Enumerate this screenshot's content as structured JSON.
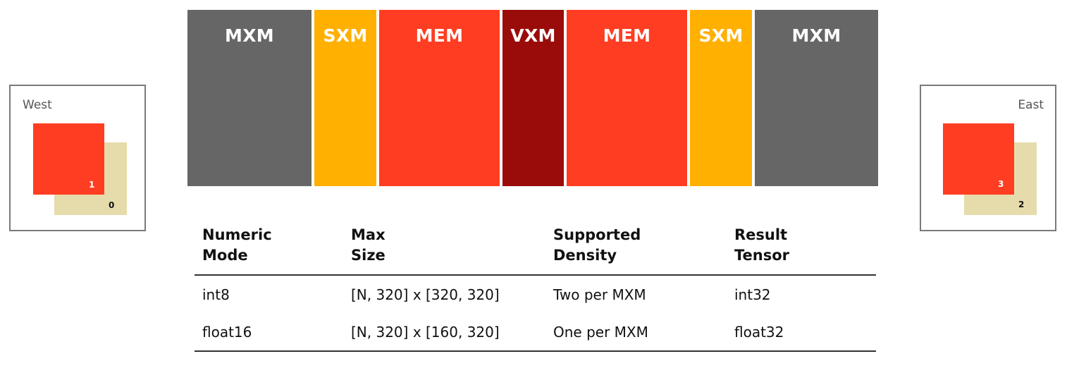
{
  "colors": {
    "mxm": "#666666",
    "sxm": "#ffb000",
    "mem": "#ff3d22",
    "vxm": "#990c0a",
    "tile_front": "#ff3d22",
    "tile_back": "#e6dcab"
  },
  "blocks": [
    {
      "label": "MXM",
      "kind": "mxm"
    },
    {
      "label": "SXM",
      "kind": "sxm"
    },
    {
      "label": "MEM",
      "kind": "mem"
    },
    {
      "label": "VXM",
      "kind": "vxm"
    },
    {
      "label": "MEM",
      "kind": "mem"
    },
    {
      "label": "SXM",
      "kind": "sxm"
    },
    {
      "label": "MXM",
      "kind": "mxm"
    }
  ],
  "west": {
    "label": "West",
    "front_number": "1",
    "back_number": "0"
  },
  "east": {
    "label": "East",
    "front_number": "3",
    "back_number": "2"
  },
  "table": {
    "headers": [
      [
        "Numeric",
        "Mode"
      ],
      [
        "Max",
        "Size"
      ],
      [
        "Supported",
        "Density"
      ],
      [
        "Result",
        "Tensor"
      ]
    ],
    "rows": [
      [
        "int8",
        "[N, 320] x [320, 320]",
        "Two per MXM",
        "int32"
      ],
      [
        "float16",
        "[N, 320] x [160, 320]",
        "One per MXM",
        "float32"
      ]
    ]
  }
}
